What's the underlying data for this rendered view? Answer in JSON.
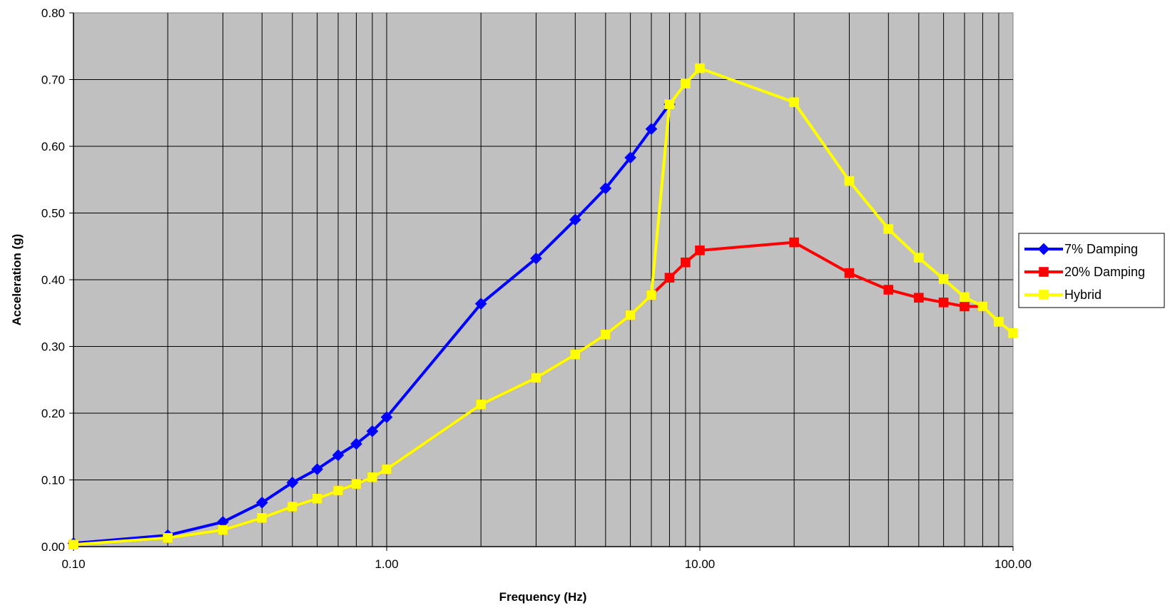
{
  "chart_data": {
    "type": "line",
    "xlabel": "Frequency (Hz)",
    "ylabel": "Acceleration (g)",
    "xscale": "log",
    "xlim": [
      0.1,
      100
    ],
    "ylim": [
      0,
      0.8
    ],
    "x_ticks": [
      "0.10",
      "1.00",
      "10.00",
      "100.00"
    ],
    "y_ticks": [
      "0.00",
      "0.10",
      "0.20",
      "0.30",
      "0.40",
      "0.50",
      "0.60",
      "0.70",
      "0.80"
    ],
    "grid": true,
    "plot_background": "#c0c0c0",
    "legend_position": "right",
    "series": [
      {
        "name": "7% Damping",
        "color": "#0000ff",
        "marker": "diamond",
        "points": [
          [
            0.1,
            0.005
          ],
          [
            0.2,
            0.017
          ],
          [
            0.3,
            0.037
          ],
          [
            0.4,
            0.066
          ],
          [
            0.5,
            0.096
          ],
          [
            0.6,
            0.116
          ],
          [
            0.7,
            0.137
          ],
          [
            0.8,
            0.154
          ],
          [
            0.9,
            0.173
          ],
          [
            1,
            0.194
          ],
          [
            2,
            0.364
          ],
          [
            3,
            0.432
          ],
          [
            4,
            0.49
          ],
          [
            5,
            0.537
          ],
          [
            6,
            0.583
          ],
          [
            7,
            0.626
          ],
          [
            8,
            0.663
          ]
        ]
      },
      {
        "name": "20% Damping",
        "color": "#ff0000",
        "marker": "square",
        "points": [
          [
            0.1,
            0.003
          ],
          [
            0.2,
            0.013
          ],
          [
            0.3,
            0.025
          ],
          [
            0.4,
            0.043
          ],
          [
            0.5,
            0.06
          ],
          [
            0.6,
            0.072
          ],
          [
            0.7,
            0.084
          ],
          [
            0.8,
            0.094
          ],
          [
            0.9,
            0.104
          ],
          [
            1,
            0.116
          ],
          [
            2,
            0.213
          ],
          [
            3,
            0.253
          ],
          [
            4,
            0.288
          ],
          [
            5,
            0.318
          ],
          [
            6,
            0.347
          ],
          [
            7,
            0.377
          ],
          [
            8,
            0.403
          ],
          [
            9,
            0.426
          ],
          [
            10,
            0.444
          ],
          [
            20,
            0.456
          ],
          [
            30,
            0.41
          ],
          [
            40,
            0.385
          ],
          [
            50,
            0.373
          ],
          [
            60,
            0.366
          ],
          [
            70,
            0.36
          ],
          [
            80,
            0.36
          ]
        ]
      },
      {
        "name": "Hybrid",
        "color": "#ffff00",
        "marker": "square",
        "points": [
          [
            0.1,
            0.003
          ],
          [
            0.2,
            0.013
          ],
          [
            0.3,
            0.025
          ],
          [
            0.4,
            0.043
          ],
          [
            0.5,
            0.06
          ],
          [
            0.6,
            0.072
          ],
          [
            0.7,
            0.084
          ],
          [
            0.8,
            0.094
          ],
          [
            0.9,
            0.104
          ],
          [
            1,
            0.116
          ],
          [
            2,
            0.213
          ],
          [
            3,
            0.253
          ],
          [
            4,
            0.288
          ],
          [
            5,
            0.318
          ],
          [
            6,
            0.347
          ],
          [
            7,
            0.377
          ],
          [
            8,
            0.663
          ],
          [
            9,
            0.694
          ],
          [
            10,
            0.717
          ],
          [
            20,
            0.666
          ],
          [
            30,
            0.548
          ],
          [
            40,
            0.476
          ],
          [
            50,
            0.433
          ],
          [
            60,
            0.401
          ],
          [
            70,
            0.374
          ],
          [
            80,
            0.36
          ],
          [
            90,
            0.337
          ],
          [
            100,
            0.32
          ]
        ]
      }
    ]
  }
}
